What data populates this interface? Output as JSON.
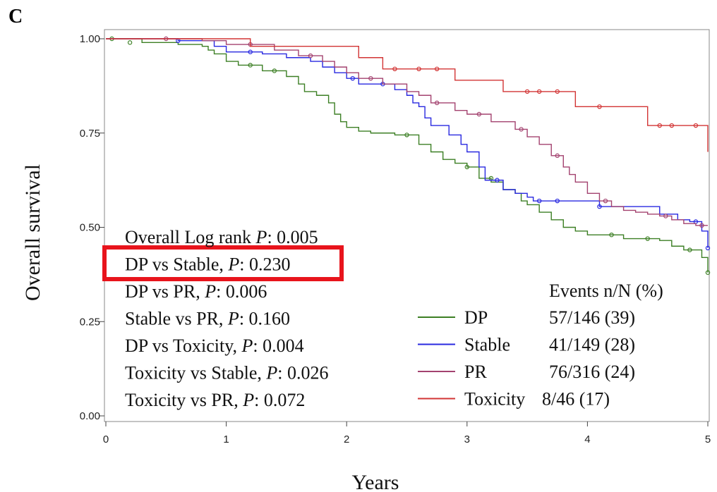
{
  "chart_data": {
    "type": "step",
    "panel_label": "C",
    "x_label": "Years",
    "y_label": "Overall survival",
    "xlim": [
      0,
      5
    ],
    "ylim": [
      0,
      1
    ],
    "xticks": [
      0,
      1,
      2,
      3,
      4,
      5
    ],
    "yticks": [
      {
        "value": 0,
        "label": "0.00"
      },
      {
        "value": 0.25,
        "label": "0.25"
      },
      {
        "value": 0.5,
        "label": "0.50"
      },
      {
        "value": 0.75,
        "label": "0.75"
      },
      {
        "value": 1,
        "label": "1.00"
      }
    ],
    "comparisons": [
      {
        "label": "Overall Log rank ",
        "stat": "P",
        "value": ": 0.005"
      },
      {
        "label": "DP vs Stable, ",
        "stat": "P",
        "value": ": 0.230"
      },
      {
        "label": "DP vs PR, ",
        "stat": "P",
        "value": ": 0.006"
      },
      {
        "label": "Stable vs PR, ",
        "stat": "P",
        "value": ": 0.160"
      },
      {
        "label": "DP vs Toxicity, ",
        "stat": "P",
        "value": ": 0.004"
      },
      {
        "label": "Toxicity vs Stable, ",
        "stat": "P",
        "value": ": 0.026"
      },
      {
        "label": "Toxicity vs PR, ",
        "stat": "P",
        "value": ": 0.072"
      }
    ],
    "events_header": "Events n/N (%)",
    "series": [
      {
        "name": "DP",
        "color": "#3c7f24",
        "events": "57/146 (39)",
        "x": [
          0,
          0.3,
          0.6,
          0.8,
          0.85,
          0.9,
          1.0,
          1.1,
          1.3,
          1.5,
          1.6,
          1.65,
          1.75,
          1.85,
          1.9,
          1.95,
          2.0,
          2.1,
          2.2,
          2.4,
          2.6,
          2.7,
          2.8,
          2.9,
          3.0,
          3.1,
          3.2,
          3.3,
          3.4,
          3.45,
          3.5,
          3.6,
          3.7,
          3.8,
          3.9,
          4.0,
          4.3,
          4.6,
          4.7,
          4.8,
          4.95,
          5.0
        ],
        "values": [
          1,
          0.99,
          0.985,
          0.98,
          0.97,
          0.96,
          0.94,
          0.93,
          0.915,
          0.9,
          0.88,
          0.86,
          0.85,
          0.83,
          0.8,
          0.78,
          0.765,
          0.755,
          0.75,
          0.745,
          0.72,
          0.7,
          0.68,
          0.67,
          0.66,
          0.63,
          0.62,
          0.6,
          0.59,
          0.57,
          0.56,
          0.54,
          0.52,
          0.5,
          0.49,
          0.48,
          0.47,
          0.465,
          0.45,
          0.44,
          0.42,
          0.38
        ],
        "censored": {
          "x": [
            0.05,
            0.2,
            1.2,
            1.4,
            2.5,
            3.0,
            3.2,
            4.2,
            4.5,
            4.85,
            5.0
          ],
          "values": [
            1,
            0.99,
            0.93,
            0.915,
            0.745,
            0.66,
            0.63,
            0.48,
            0.47,
            0.44,
            0.38
          ]
        }
      },
      {
        "name": "Stable",
        "color": "#2828e0",
        "events": "41/149 (28)",
        "x": [
          0,
          0.6,
          0.9,
          1.0,
          1.3,
          1.5,
          1.7,
          1.8,
          1.9,
          2.0,
          2.1,
          2.4,
          2.5,
          2.55,
          2.6,
          2.65,
          2.7,
          2.85,
          2.95,
          3.0,
          3.1,
          3.15,
          3.3,
          3.4,
          3.5,
          3.55,
          4.1,
          4.6,
          4.75,
          4.85,
          4.95,
          5.0
        ],
        "values": [
          1,
          0.995,
          0.98,
          0.965,
          0.96,
          0.95,
          0.94,
          0.925,
          0.91,
          0.895,
          0.88,
          0.865,
          0.85,
          0.83,
          0.82,
          0.79,
          0.77,
          0.745,
          0.72,
          0.7,
          0.66,
          0.625,
          0.6,
          0.59,
          0.58,
          0.57,
          0.555,
          0.535,
          0.52,
          0.515,
          0.49,
          0.445
        ],
        "censored": {
          "x": [
            0.6,
            1.2,
            2.05,
            2.3,
            3.25,
            3.6,
            3.75,
            4.1,
            4.9,
            5.0
          ],
          "values": [
            0.995,
            0.965,
            0.895,
            0.88,
            0.625,
            0.57,
            0.57,
            0.555,
            0.515,
            0.445
          ]
        }
      },
      {
        "name": "PR",
        "color": "#a3426f",
        "events": "76/316 (24)",
        "x": [
          0,
          0.8,
          1.0,
          1.4,
          1.6,
          1.8,
          1.9,
          2.0,
          2.1,
          2.3,
          2.5,
          2.6,
          2.7,
          2.9,
          3.0,
          3.2,
          3.4,
          3.5,
          3.6,
          3.7,
          3.8,
          3.85,
          3.9,
          4.0,
          4.1,
          4.2,
          4.3,
          4.4,
          4.5,
          4.6,
          4.7,
          4.8,
          4.9,
          5.0
        ],
        "values": [
          1,
          0.995,
          0.985,
          0.97,
          0.955,
          0.94,
          0.925,
          0.91,
          0.895,
          0.88,
          0.86,
          0.85,
          0.83,
          0.81,
          0.8,
          0.78,
          0.76,
          0.74,
          0.72,
          0.69,
          0.66,
          0.64,
          0.62,
          0.59,
          0.57,
          0.555,
          0.545,
          0.54,
          0.535,
          0.53,
          0.52,
          0.51,
          0.505,
          0.505
        ],
        "censored": {
          "x": [
            0.5,
            1.2,
            1.7,
            2.2,
            2.75,
            3.1,
            3.45,
            3.75,
            4.15,
            4.65,
            4.95
          ],
          "values": [
            1,
            0.985,
            0.955,
            0.895,
            0.83,
            0.8,
            0.76,
            0.69,
            0.57,
            0.53,
            0.505
          ]
        }
      },
      {
        "name": "Toxicity",
        "color": "#d23434",
        "events": "8/46 (17)",
        "x": [
          0,
          1.2,
          2.1,
          2.3,
          2.9,
          3.3,
          3.9,
          4.5,
          5.0
        ],
        "values": [
          1,
          0.98,
          0.95,
          0.92,
          0.89,
          0.86,
          0.82,
          0.77,
          0.7
        ],
        "censored": {
          "x": [
            2.4,
            2.6,
            2.75,
            3.5,
            3.6,
            3.75,
            4.1,
            4.6,
            4.7,
            4.9
          ],
          "values": [
            0.92,
            0.92,
            0.92,
            0.86,
            0.86,
            0.86,
            0.82,
            0.77,
            0.77,
            0.77
          ]
        }
      }
    ]
  }
}
